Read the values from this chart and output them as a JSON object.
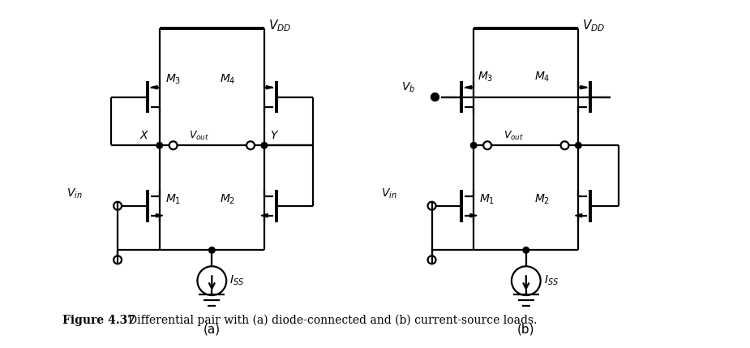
{
  "figure_title": "Figure 4.37",
  "figure_caption": "   Differential pair with (a) diode-connected and (b) current-source loads.",
  "background_color": "#ffffff",
  "line_color": "#000000",
  "fig_width": 9.25,
  "fig_height": 4.29,
  "dpi": 100,
  "label_a": "(a)",
  "label_b": "(b)",
  "lw": 1.6,
  "lw_thick": 2.8
}
